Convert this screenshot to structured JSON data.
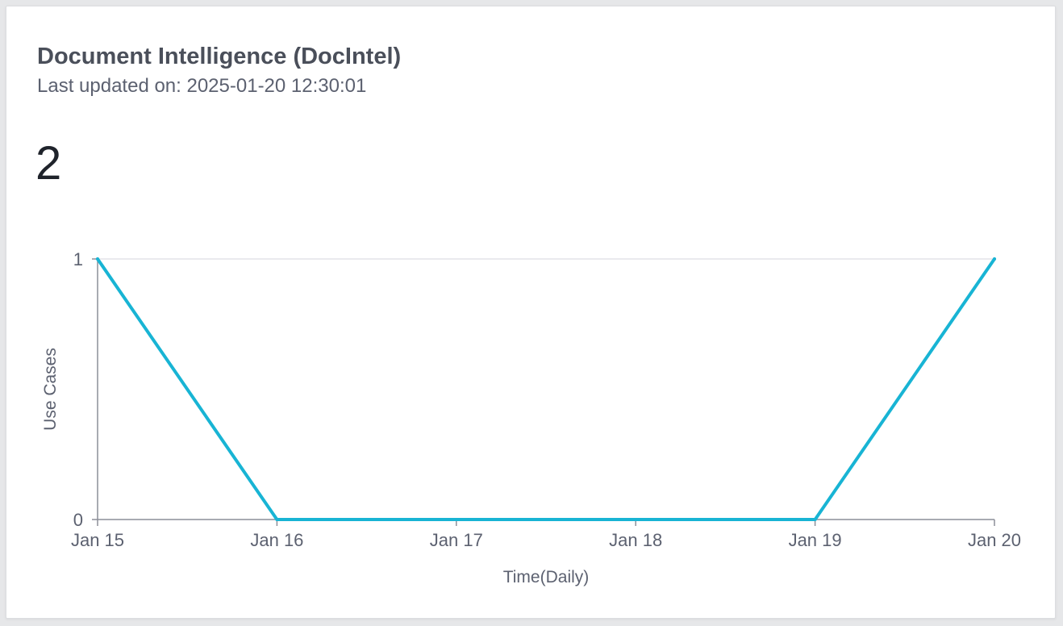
{
  "card": {
    "title": "Document Intelligence (DocIntel)",
    "subtitle": "Last updated on: 2025-01-20 12:30:01",
    "metric_value": "2"
  },
  "colors": {
    "series_line": "#18b4d4",
    "axis": "#8c8f99",
    "gridline": "#e3e4e8",
    "text": "#5c6170"
  },
  "chart_data": {
    "type": "line",
    "categories": [
      "Jan 15",
      "Jan 16",
      "Jan 17",
      "Jan 18",
      "Jan 19",
      "Jan 20"
    ],
    "series": [
      {
        "values": [
          1,
          0,
          0,
          0,
          0,
          1
        ]
      }
    ],
    "xlabel": "Time(Daily)",
    "ylabel": "Use Cases",
    "ylim": [
      0,
      1
    ],
    "yticks": [
      0,
      1
    ],
    "grid": "horizontal"
  }
}
